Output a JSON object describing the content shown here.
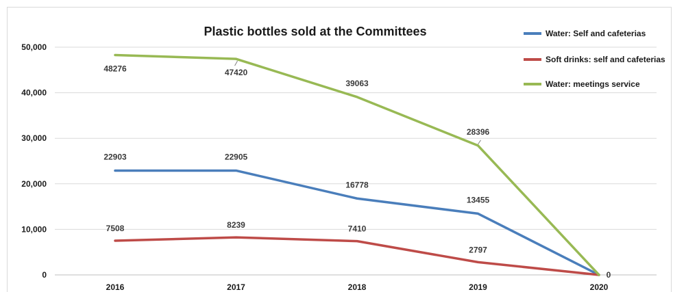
{
  "chart_data": {
    "type": "line",
    "title": "Plastic bottles sold at the Committees",
    "categories": [
      "2016",
      "2017",
      "2018",
      "2019",
      "2020"
    ],
    "y_ticks": [
      "0",
      "10,000",
      "20,000",
      "30,000",
      "40,000",
      "50,000"
    ],
    "ylim": [
      0,
      50000
    ],
    "grid": true,
    "legend_position": "top-right",
    "series": [
      {
        "name": "Water: Self and cafeterias",
        "color": "#4a7ebb",
        "values": [
          22903,
          22905,
          16778,
          13455,
          0
        ],
        "labels": [
          "22903",
          "22905",
          "16778",
          "13455",
          ""
        ]
      },
      {
        "name": "Soft drinks: self and cafeterias",
        "color": "#be4b48",
        "values": [
          7508,
          8239,
          7410,
          2797,
          0
        ],
        "labels": [
          "7508",
          "8239",
          "7410",
          "2797",
          "0"
        ]
      },
      {
        "name": "Water: meetings service",
        "color": "#98b954",
        "values": [
          48276,
          47420,
          39063,
          28396,
          0
        ],
        "labels": [
          "48276",
          "47420",
          "39063",
          "28396",
          ""
        ]
      }
    ]
  }
}
